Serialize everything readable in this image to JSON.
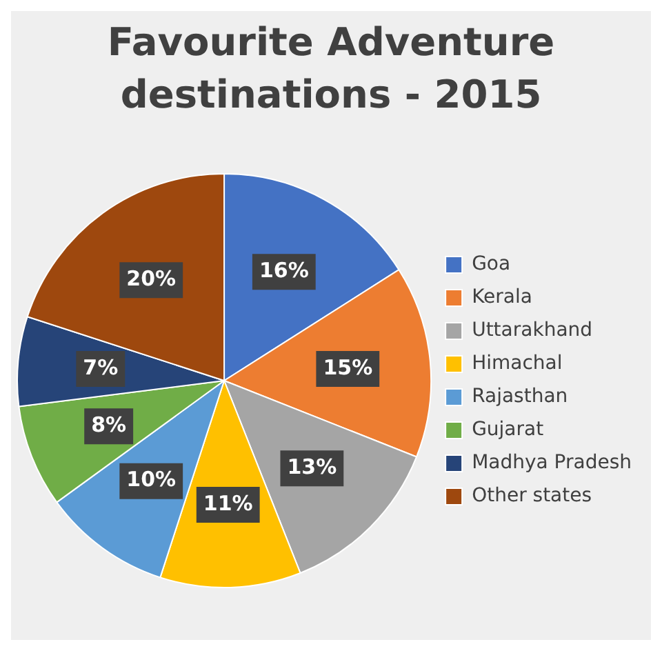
{
  "chart_data": {
    "type": "pie",
    "title": "Favourite Adventure destinations - 2015",
    "categories": [
      "Goa",
      "Kerala",
      "Uttarakhand",
      "Himachal",
      "Rajasthan",
      "Gujarat",
      "Madhya Pradesh",
      "Other states"
    ],
    "values": [
      16,
      15,
      13,
      11,
      10,
      8,
      7,
      20
    ],
    "colors": [
      "#4472c4",
      "#ed7d31",
      "#a5a5a5",
      "#ffc000",
      "#5b9bd5",
      "#70ad47",
      "#264478",
      "#9e480e"
    ],
    "value_labels": [
      "16%",
      "15%",
      "13%",
      "11%",
      "10%",
      "8%",
      "7%",
      "20%"
    ],
    "legend": "right"
  }
}
